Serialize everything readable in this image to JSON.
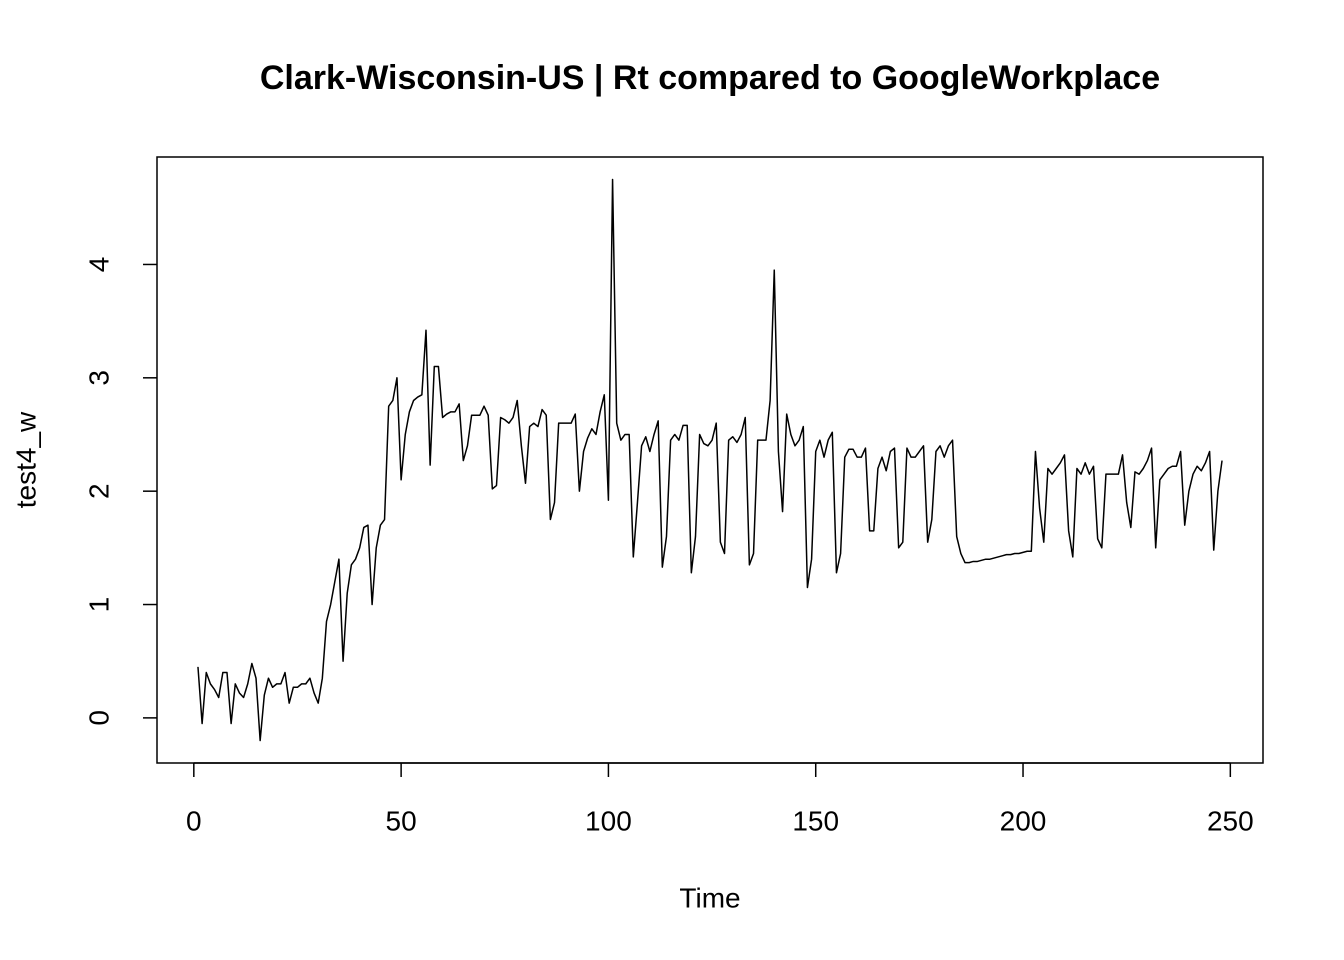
{
  "chart_data": {
    "type": "line",
    "title": "Clark-Wisconsin-US | Rt compared to GoogleWorkplace",
    "xlabel": "Time",
    "ylabel": "test4_w",
    "color": "#000000",
    "xlim": [
      -8.88,
      257.88
    ],
    "ylim": [
      -0.398,
      4.948
    ],
    "xticks": [
      0,
      50,
      100,
      150,
      200,
      250
    ],
    "yticks": [
      0,
      1,
      2,
      3,
      4
    ],
    "x": [
      1,
      2,
      3,
      4,
      5,
      6,
      7,
      8,
      9,
      10,
      11,
      12,
      13,
      14,
      15,
      16,
      17,
      18,
      19,
      20,
      21,
      22,
      23,
      24,
      25,
      26,
      27,
      28,
      29,
      30,
      31,
      32,
      33,
      34,
      35,
      36,
      37,
      38,
      39,
      40,
      41,
      42,
      43,
      44,
      45,
      46,
      47,
      48,
      49,
      50,
      51,
      52,
      53,
      54,
      55,
      56,
      57,
      58,
      59,
      60,
      61,
      62,
      63,
      64,
      65,
      66,
      67,
      68,
      69,
      70,
      71,
      72,
      73,
      74,
      75,
      76,
      77,
      78,
      79,
      80,
      81,
      82,
      83,
      84,
      85,
      86,
      87,
      88,
      89,
      90,
      91,
      92,
      93,
      94,
      95,
      96,
      97,
      98,
      99,
      100,
      101,
      102,
      103,
      104,
      105,
      106,
      107,
      108,
      109,
      110,
      111,
      112,
      113,
      114,
      115,
      116,
      117,
      118,
      119,
      120,
      121,
      122,
      123,
      124,
      125,
      126,
      127,
      128,
      129,
      130,
      131,
      132,
      133,
      134,
      135,
      136,
      137,
      138,
      139,
      140,
      141,
      142,
      143,
      144,
      145,
      146,
      147,
      148,
      149,
      150,
      151,
      152,
      153,
      154,
      155,
      156,
      157,
      158,
      159,
      160,
      161,
      162,
      163,
      164,
      165,
      166,
      167,
      168,
      169,
      170,
      171,
      172,
      173,
      174,
      175,
      176,
      177,
      178,
      179,
      180,
      181,
      182,
      183,
      184,
      185,
      186,
      187,
      188,
      189,
      190,
      191,
      192,
      193,
      194,
      195,
      196,
      197,
      198,
      199,
      200,
      201,
      202,
      203,
      204,
      205,
      206,
      207,
      208,
      209,
      210,
      211,
      212,
      213,
      214,
      215,
      216,
      217,
      218,
      219,
      220,
      221,
      222,
      223,
      224,
      225,
      226,
      227,
      228,
      229,
      230,
      231,
      232,
      233,
      234,
      235,
      236,
      237,
      238,
      239,
      240,
      241,
      242,
      243,
      244,
      245,
      246,
      247,
      248
    ],
    "values": [
      0.45,
      -0.05,
      0.4,
      0.3,
      0.25,
      0.18,
      0.4,
      0.4,
      -0.05,
      0.3,
      0.22,
      0.18,
      0.3,
      0.48,
      0.35,
      -0.2,
      0.2,
      0.35,
      0.27,
      0.3,
      0.3,
      0.4,
      0.13,
      0.27,
      0.27,
      0.3,
      0.3,
      0.35,
      0.22,
      0.13,
      0.35,
      0.85,
      1.0,
      1.2,
      1.4,
      0.5,
      1.1,
      1.35,
      1.4,
      1.5,
      1.68,
      1.7,
      1.0,
      1.5,
      1.7,
      1.75,
      2.75,
      2.8,
      3.0,
      2.1,
      2.5,
      2.7,
      2.8,
      2.83,
      2.85,
      3.42,
      2.23,
      3.1,
      3.1,
      2.65,
      2.68,
      2.7,
      2.7,
      2.77,
      2.27,
      2.4,
      2.67,
      2.67,
      2.67,
      2.75,
      2.67,
      2.02,
      2.05,
      2.65,
      2.63,
      2.6,
      2.65,
      2.8,
      2.4,
      2.07,
      2.57,
      2.6,
      2.57,
      2.72,
      2.67,
      1.75,
      1.9,
      2.6,
      2.6,
      2.6,
      2.6,
      2.68,
      2.0,
      2.35,
      2.47,
      2.55,
      2.5,
      2.7,
      2.85,
      1.92,
      4.75,
      2.6,
      2.45,
      2.5,
      2.5,
      1.42,
      1.9,
      2.4,
      2.48,
      2.35,
      2.5,
      2.62,
      1.33,
      1.6,
      2.45,
      2.5,
      2.45,
      2.58,
      2.58,
      1.28,
      1.6,
      2.5,
      2.42,
      2.4,
      2.45,
      2.6,
      1.55,
      1.45,
      2.45,
      2.48,
      2.43,
      2.5,
      2.65,
      1.35,
      1.45,
      2.45,
      2.45,
      2.45,
      2.8,
      3.95,
      2.35,
      1.82,
      2.68,
      2.5,
      2.4,
      2.45,
      2.57,
      1.15,
      1.4,
      2.35,
      2.45,
      2.3,
      2.45,
      2.52,
      1.28,
      1.45,
      2.3,
      2.37,
      2.37,
      2.3,
      2.3,
      2.38,
      1.65,
      1.65,
      2.2,
      2.3,
      2.18,
      2.35,
      2.38,
      1.5,
      1.55,
      2.38,
      2.3,
      2.3,
      2.35,
      2.4,
      1.55,
      1.75,
      2.35,
      2.4,
      2.3,
      2.4,
      2.45,
      1.6,
      1.45,
      1.37,
      1.37,
      1.38,
      1.38,
      1.39,
      1.4,
      1.4,
      1.41,
      1.42,
      1.43,
      1.44,
      1.44,
      1.45,
      1.45,
      1.46,
      1.47,
      1.47,
      2.35,
      1.85,
      1.55,
      2.2,
      2.15,
      2.2,
      2.25,
      2.32,
      1.65,
      1.42,
      2.2,
      2.15,
      2.25,
      2.15,
      2.22,
      1.58,
      1.5,
      2.15,
      2.15,
      2.15,
      2.15,
      2.32,
      1.9,
      1.68,
      2.17,
      2.15,
      2.2,
      2.27,
      2.38,
      1.5,
      2.1,
      2.15,
      2.2,
      2.22,
      2.22,
      2.35,
      1.7,
      2.0,
      2.15,
      2.22,
      2.18,
      2.25,
      2.35,
      1.48,
      2.0,
      2.27
    ]
  }
}
